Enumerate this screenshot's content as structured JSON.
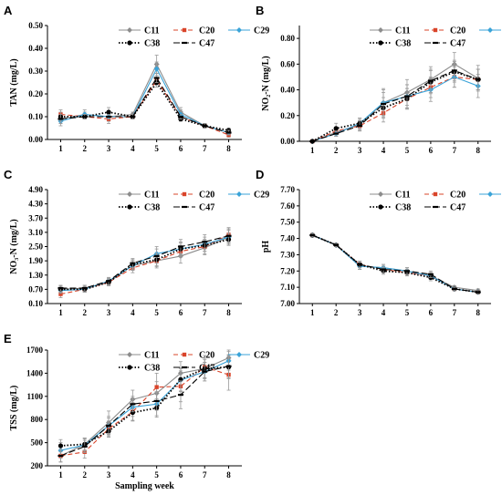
{
  "series_styles": [
    {
      "name": "C11",
      "color": "#8c8c8c",
      "dash": "",
      "marker": "diamond"
    },
    {
      "name": "C20",
      "color": "#d9442a",
      "dash": "5,3",
      "marker": "square"
    },
    {
      "name": "C29",
      "color": "#3aa3d8",
      "dash": "",
      "marker": "diamond"
    },
    {
      "name": "C38",
      "color": "#000000",
      "dash": "1.5,2",
      "marker": "circle"
    },
    {
      "name": "C47",
      "color": "#000000",
      "dash": "7,3",
      "marker": "dash"
    }
  ],
  "chart_data": [
    {
      "letter": "A",
      "type": "line",
      "title": "",
      "xlabel": "",
      "ylabel": "TAN (mg/L)",
      "x": [
        1,
        2,
        3,
        4,
        5,
        6,
        7,
        8
      ],
      "ylim": [
        0,
        0.5
      ],
      "yticks": [
        "0.00",
        "0.10",
        "0.20",
        "0.30",
        "0.40",
        "0.50"
      ],
      "ytick_values": [
        0,
        0.1,
        0.2,
        0.3,
        0.4,
        0.5
      ],
      "series": [
        {
          "name": "C11",
          "values": [
            0.09,
            0.11,
            0.1,
            0.11,
            0.33,
            0.12,
            0.06,
            0.03
          ],
          "errors": [
            0.02,
            0.02,
            0.02,
            0.01,
            0.04,
            0.02,
            0.01,
            0.01
          ]
        },
        {
          "name": "C20",
          "values": [
            0.11,
            0.1,
            0.09,
            0.1,
            0.26,
            0.1,
            0.06,
            0.02
          ],
          "errors": [
            0.02,
            0.01,
            0.02,
            0.01,
            0.02,
            0.02,
            0.01,
            0.01
          ]
        },
        {
          "name": "C29",
          "values": [
            0.08,
            0.11,
            0.1,
            0.1,
            0.31,
            0.11,
            0.06,
            0.03
          ],
          "errors": [
            0.02,
            0.01,
            0.01,
            0.01,
            0.03,
            0.02,
            0.01,
            0.01
          ]
        },
        {
          "name": "C38",
          "values": [
            0.1,
            0.1,
            0.12,
            0.1,
            0.25,
            0.09,
            0.06,
            0.04
          ],
          "errors": [
            0.02,
            0.01,
            0.02,
            0.01,
            0.02,
            0.01,
            0.01,
            0.01
          ]
        },
        {
          "name": "C47",
          "values": [
            0.09,
            0.1,
            0.1,
            0.1,
            0.27,
            0.1,
            0.06,
            0.03
          ],
          "errors": [
            0.02,
            0.01,
            0.01,
            0.01,
            0.02,
            0.01,
            0.01,
            0.01
          ]
        }
      ]
    },
    {
      "letter": "B",
      "type": "line",
      "title": "",
      "xlabel": "",
      "ylabel": "NO₂-N (mg/L)",
      "x": [
        1,
        2,
        3,
        4,
        5,
        6,
        7,
        8
      ],
      "ylim": [
        0,
        0.9
      ],
      "yticks": [
        "0.00",
        "0.20",
        "0.40",
        "0.60",
        "0.80"
      ],
      "ytick_values": [
        0,
        0.2,
        0.4,
        0.6,
        0.8
      ],
      "series": [
        {
          "name": "C11",
          "values": [
            0.0,
            0.07,
            0.13,
            0.3,
            0.38,
            0.48,
            0.6,
            0.49
          ],
          "errors": [
            0.0,
            0.03,
            0.04,
            0.11,
            0.1,
            0.1,
            0.09,
            0.1
          ]
        },
        {
          "name": "C20",
          "values": [
            0.0,
            0.08,
            0.12,
            0.22,
            0.33,
            0.42,
            0.5,
            0.48
          ],
          "errors": [
            0.0,
            0.03,
            0.04,
            0.07,
            0.08,
            0.08,
            0.08,
            0.08
          ]
        },
        {
          "name": "C29",
          "values": [
            0.0,
            0.06,
            0.14,
            0.3,
            0.35,
            0.4,
            0.5,
            0.43
          ],
          "errors": [
            0.0,
            0.02,
            0.04,
            0.1,
            0.09,
            0.09,
            0.08,
            0.09
          ]
        },
        {
          "name": "C38",
          "values": [
            0.0,
            0.1,
            0.14,
            0.26,
            0.33,
            0.46,
            0.54,
            0.48
          ],
          "errors": [
            0.0,
            0.04,
            0.04,
            0.08,
            0.08,
            0.09,
            0.08,
            0.08
          ]
        },
        {
          "name": "C47",
          "values": [
            0.0,
            0.06,
            0.12,
            0.29,
            0.35,
            0.47,
            0.55,
            0.48
          ],
          "errors": [
            0.0,
            0.02,
            0.04,
            0.09,
            0.09,
            0.09,
            0.08,
            0.08
          ]
        }
      ]
    },
    {
      "letter": "C",
      "type": "line",
      "title": "",
      "xlabel": "",
      "ylabel": "NO₃-N (mg/L)",
      "x": [
        1,
        2,
        3,
        4,
        5,
        6,
        7,
        8
      ],
      "ylim": [
        0.1,
        4.9
      ],
      "yticks": [
        "0.10",
        "0.70",
        "1.30",
        "1.90",
        "2.50",
        "3.10",
        "3.70",
        "4.30",
        "4.90"
      ],
      "ytick_values": [
        0.1,
        0.7,
        1.3,
        1.9,
        2.5,
        3.1,
        3.7,
        4.3,
        4.9
      ],
      "series": [
        {
          "name": "C11",
          "values": [
            0.7,
            0.75,
            1.0,
            1.7,
            1.9,
            2.1,
            2.45,
            2.9
          ],
          "errors": [
            0.15,
            0.12,
            0.15,
            0.2,
            0.3,
            0.3,
            0.3,
            0.3
          ]
        },
        {
          "name": "C20",
          "values": [
            0.5,
            0.7,
            1.0,
            1.6,
            1.9,
            2.3,
            2.5,
            3.0
          ],
          "errors": [
            0.15,
            0.12,
            0.15,
            0.2,
            0.25,
            0.25,
            0.3,
            0.3
          ]
        },
        {
          "name": "C29",
          "values": [
            0.65,
            0.7,
            1.05,
            1.7,
            2.2,
            2.4,
            2.6,
            2.9
          ],
          "errors": [
            0.12,
            0.12,
            0.15,
            0.2,
            0.3,
            0.3,
            0.3,
            0.3
          ]
        },
        {
          "name": "C38",
          "values": [
            0.7,
            0.7,
            1.0,
            1.75,
            1.95,
            2.4,
            2.55,
            2.8
          ],
          "errors": [
            0.12,
            0.1,
            0.12,
            0.2,
            0.25,
            0.25,
            0.25,
            0.25
          ]
        },
        {
          "name": "C47",
          "values": [
            0.75,
            0.75,
            1.05,
            1.8,
            2.1,
            2.5,
            2.7,
            2.95
          ],
          "errors": [
            0.12,
            0.12,
            0.15,
            0.2,
            0.3,
            0.3,
            0.3,
            0.3
          ]
        }
      ]
    },
    {
      "letter": "D",
      "type": "line",
      "title": "",
      "xlabel": "",
      "ylabel": "pH",
      "x": [
        1,
        2,
        3,
        4,
        5,
        6,
        7,
        8
      ],
      "ylim": [
        7.0,
        7.7
      ],
      "yticks": [
        "7.00",
        "7.10",
        "7.20",
        "7.30",
        "7.40",
        "7.50",
        "7.60",
        "7.70"
      ],
      "ytick_values": [
        7.0,
        7.1,
        7.2,
        7.3,
        7.4,
        7.5,
        7.6,
        7.7
      ],
      "series": [
        {
          "name": "C11",
          "values": [
            7.42,
            7.36,
            7.23,
            7.22,
            7.2,
            7.17,
            7.1,
            7.08
          ],
          "errors": [
            0.01,
            0.01,
            0.02,
            0.02,
            0.02,
            0.02,
            0.01,
            0.01
          ]
        },
        {
          "name": "C20",
          "values": [
            7.42,
            7.36,
            7.24,
            7.21,
            7.19,
            7.17,
            7.09,
            7.07
          ],
          "errors": [
            0.01,
            0.01,
            0.02,
            0.02,
            0.02,
            0.02,
            0.01,
            0.01
          ]
        },
        {
          "name": "C29",
          "values": [
            7.42,
            7.36,
            7.23,
            7.22,
            7.2,
            7.17,
            7.09,
            7.07
          ],
          "errors": [
            0.01,
            0.01,
            0.02,
            0.02,
            0.02,
            0.02,
            0.01,
            0.01
          ]
        },
        {
          "name": "C38",
          "values": [
            7.42,
            7.36,
            7.24,
            7.2,
            7.19,
            7.16,
            7.09,
            7.07
          ],
          "errors": [
            0.01,
            0.01,
            0.02,
            0.02,
            0.02,
            0.02,
            0.01,
            0.01
          ]
        },
        {
          "name": "C47",
          "values": [
            7.42,
            7.36,
            7.24,
            7.21,
            7.2,
            7.18,
            7.09,
            7.07
          ],
          "errors": [
            0.01,
            0.01,
            0.02,
            0.02,
            0.02,
            0.02,
            0.01,
            0.01
          ]
        }
      ]
    },
    {
      "letter": "E",
      "type": "line",
      "title": "",
      "xlabel": "Sampling week",
      "ylabel": "TSS (mg/L)",
      "x": [
        1,
        2,
        3,
        4,
        5,
        6,
        7,
        8
      ],
      "ylim": [
        200,
        1700
      ],
      "yticks": [
        "200",
        "500",
        "800",
        "1100",
        "1400",
        "1700"
      ],
      "ytick_values": [
        200,
        500,
        800,
        1100,
        1400,
        1700
      ],
      "series": [
        {
          "name": "C11",
          "values": [
            330,
            480,
            760,
            1060,
            1140,
            1400,
            1460,
            1600
          ],
          "errors": [
            80,
            80,
            150,
            120,
            150,
            150,
            120,
            100
          ]
        },
        {
          "name": "C20",
          "values": [
            330,
            380,
            680,
            900,
            1220,
            1230,
            1480,
            1380
          ],
          "errors": [
            80,
            80,
            100,
            120,
            180,
            200,
            150,
            200
          ]
        },
        {
          "name": "C29",
          "values": [
            400,
            470,
            720,
            960,
            1000,
            1310,
            1420,
            1560
          ],
          "errors": [
            100,
            80,
            120,
            120,
            150,
            150,
            120,
            120
          ]
        },
        {
          "name": "C38",
          "values": [
            460,
            480,
            650,
            890,
            950,
            1320,
            1460,
            1480
          ],
          "errors": [
            80,
            80,
            80,
            100,
            120,
            150,
            120,
            150
          ]
        },
        {
          "name": "C47",
          "values": [
            330,
            450,
            720,
            1000,
            1040,
            1120,
            1420,
            1490
          ],
          "errors": [
            80,
            80,
            100,
            100,
            120,
            180,
            120,
            150
          ]
        }
      ]
    }
  ]
}
